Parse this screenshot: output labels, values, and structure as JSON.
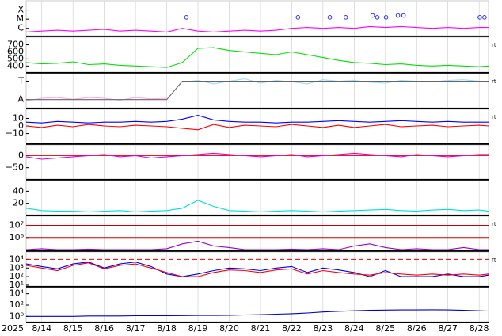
{
  "chart_data": [
    {
      "type": "line",
      "xlim": [
        13.5,
        28.3
      ],
      "ylim": [
        -6.8,
        -3.0
      ],
      "yticks": [
        {
          "value": -4,
          "label": "X"
        },
        {
          "value": -5,
          "label": "M"
        },
        {
          "value": -6,
          "label": "C"
        }
      ],
      "x": [
        13.5,
        14,
        14.5,
        15,
        15.5,
        16,
        16.5,
        17,
        17.5,
        18,
        18.5,
        19,
        19.5,
        20,
        20.5,
        21,
        21.5,
        22,
        22.5,
        23,
        23.5,
        24,
        24.5,
        25,
        25.5,
        26,
        26.5,
        27,
        27.5,
        28,
        28.3
      ],
      "series": [
        {
          "color": "#ff00ff",
          "values": [
            -6.4,
            -6.3,
            -6.2,
            -6.3,
            -6.2,
            -6.1,
            -6.3,
            -6.2,
            -6.3,
            -6.4,
            -6.0,
            -6.3,
            -6.4,
            -6.3,
            -6.2,
            -6.3,
            -6.2,
            -6.0,
            -5.9,
            -6.0,
            -5.9,
            -6.0,
            -5.8,
            -5.9,
            -5.8,
            -5.9,
            -6.0,
            -5.9,
            -6.0,
            -5.9,
            -5.9
          ]
        }
      ],
      "markers": {
        "color": "#3333ff",
        "x": [
          18.63,
          22.2,
          23.22,
          23.73,
          24.59,
          24.74,
          25.02,
          25.4,
          25.58,
          28.02,
          28.17
        ],
        "values": [
          -4.8,
          -4.8,
          -4.8,
          -4.8,
          -4.6,
          -4.8,
          -4.8,
          -4.6,
          -4.6,
          -4.8,
          -4.8
        ]
      }
    },
    {
      "type": "line",
      "xlim": [
        13.5,
        28.3
      ],
      "ylim": [
        314,
        807
      ],
      "yticks": [
        400,
        500,
        600,
        700
      ],
      "annotation": "rt",
      "x": [
        13.5,
        14,
        14.5,
        15,
        15.5,
        16,
        16.5,
        17,
        17.5,
        18,
        18.5,
        19,
        19.5,
        20,
        20.5,
        21,
        21.5,
        22,
        22.5,
        23,
        23.5,
        24,
        24.5,
        25,
        25.5,
        26,
        26.5,
        27,
        27.5,
        28,
        28.3
      ],
      "series": [
        {
          "color": "#00e000",
          "values": [
            450,
            430,
            440,
            460,
            420,
            430,
            410,
            400,
            390,
            380,
            450,
            650,
            660,
            620,
            600,
            580,
            560,
            600,
            560,
            520,
            480,
            450,
            440,
            420,
            430,
            410,
            400,
            410,
            400,
            390,
            400
          ]
        }
      ]
    },
    {
      "type": "line",
      "xlim": [
        13.5,
        28.3
      ],
      "ylim": [
        0,
        1
      ],
      "yticks": [
        {
          "value": 0.78,
          "label": "T"
        },
        {
          "value": 0.24,
          "label": "A"
        }
      ],
      "annotation": "rt",
      "x": [
        13.5,
        14,
        14.5,
        15,
        15.5,
        16,
        16.5,
        17,
        17.5,
        18,
        18.5,
        19,
        19.5,
        20,
        20.5,
        21,
        21.5,
        22,
        22.5,
        23,
        23.5,
        24,
        24.5,
        25,
        25.5,
        26,
        26.5,
        27,
        27.5,
        28,
        28.3
      ],
      "series": [
        {
          "color": "#ffaaee",
          "values": [
            0.2,
            0.28,
            0.3,
            0.25,
            0.3,
            0.28,
            0.22,
            0.3,
            0.26,
            0.28,
            null,
            null,
            null,
            null,
            null,
            null,
            null,
            null,
            null,
            null,
            null,
            null,
            null,
            null,
            null,
            null,
            null,
            null,
            null,
            null,
            null
          ]
        },
        {
          "color": "#99ddff",
          "values": [
            null,
            null,
            null,
            null,
            null,
            null,
            null,
            null,
            null,
            null,
            0.75,
            0.8,
            0.7,
            0.78,
            0.85,
            0.72,
            0.8,
            0.76,
            0.7,
            0.82,
            0.78,
            0.8,
            0.75,
            0.72,
            0.8,
            0.78,
            0.76,
            0.8,
            0.82,
            0.78,
            0.75
          ]
        },
        {
          "color": "#666666",
          "values": [
            0.24,
            0.24,
            0.24,
            0.24,
            0.24,
            0.24,
            0.24,
            0.24,
            0.24,
            0.24,
            0.78,
            0.78,
            0.78,
            0.78,
            0.78,
            0.78,
            0.78,
            0.78,
            0.78,
            0.78,
            0.78,
            0.78,
            0.78,
            0.78,
            0.78,
            0.78,
            0.78,
            0.78,
            0.78,
            0.78,
            0.78
          ]
        }
      ]
    },
    {
      "type": "line",
      "xlim": [
        13.5,
        28.3
      ],
      "ylim": [
        -23,
        22
      ],
      "yticks": [
        10,
        0,
        {
          "value": -10,
          "label": "−10"
        }
      ],
      "annotation": "rt",
      "x": [
        13.5,
        14,
        14.5,
        15,
        15.5,
        16,
        16.5,
        17,
        17.5,
        18,
        18.5,
        19,
        19.5,
        20,
        20.5,
        21,
        21.5,
        22,
        22.5,
        23,
        23.5,
        24,
        24.5,
        25,
        25.5,
        26,
        26.5,
        27,
        27.5,
        28,
        28.3
      ],
      "series": [
        {
          "color": "#0000ff",
          "values": [
            5,
            4,
            6,
            5,
            4,
            5,
            5,
            6,
            5,
            6,
            9,
            14,
            8,
            6,
            5,
            5,
            4,
            5,
            5,
            6,
            7,
            6,
            5,
            6,
            7,
            6,
            5,
            6,
            5,
            5,
            5
          ]
        },
        {
          "color": "#ff0000",
          "values": [
            0,
            -2,
            1,
            -1,
            2,
            0,
            -1,
            1,
            0,
            -1,
            -3,
            -5,
            2,
            -2,
            1,
            0,
            -1,
            2,
            0,
            -2,
            1,
            -2,
            0,
            2,
            -1,
            0,
            1,
            -1,
            0,
            1,
            0
          ]
        }
      ]
    },
    {
      "type": "line",
      "xlim": [
        13.5,
        28.3
      ],
      "ylim": [
        -97,
        44
      ],
      "yticks": [
        0,
        {
          "value": -50,
          "label": "−50"
        }
      ],
      "hlines": [
        {
          "value": 0,
          "color": "#dd0000"
        }
      ],
      "x": [
        13.5,
        14,
        14.5,
        15,
        15.5,
        16,
        16.5,
        17,
        17.5,
        18,
        18.5,
        19,
        19.5,
        20,
        20.5,
        21,
        21.5,
        22,
        22.5,
        23,
        23.5,
        24,
        24.5,
        25,
        25.5,
        26,
        26.5,
        27,
        27.5,
        28,
        28.3
      ],
      "series": [
        {
          "color": "#dd00dd",
          "values": [
            -5,
            -15,
            -10,
            -5,
            0,
            5,
            -5,
            0,
            -10,
            -5,
            0,
            5,
            10,
            5,
            0,
            -5,
            0,
            5,
            -5,
            0,
            5,
            10,
            5,
            0,
            -5,
            5,
            0,
            -5,
            0,
            5,
            5
          ]
        }
      ]
    },
    {
      "type": "line",
      "xlim": [
        13.5,
        28.3
      ],
      "ylim": [
        1.25,
        57.5
      ],
      "yticks": [
        40,
        20
      ],
      "x": [
        13.5,
        14,
        14.5,
        15,
        15.5,
        16,
        16.5,
        17,
        17.5,
        18,
        18.5,
        19,
        19.5,
        20,
        20.5,
        21,
        21.5,
        22,
        22.5,
        23,
        23.5,
        24,
        24.5,
        25,
        25.5,
        26,
        26.5,
        27,
        27.5,
        28,
        28.3
      ],
      "series": [
        {
          "color": "#00dddd",
          "values": [
            12,
            8,
            7,
            7,
            6,
            7,
            8,
            6,
            7,
            8,
            12,
            25,
            15,
            8,
            7,
            6,
            7,
            8,
            7,
            6,
            7,
            8,
            9,
            10,
            8,
            7,
            9,
            10,
            8,
            9,
            7
          ]
        }
      ]
    },
    {
      "type": "line",
      "xlim": [
        13.5,
        28.3
      ],
      "log": true,
      "ylim": [
        87000,
        56000000
      ],
      "yticks": [
        {
          "value": 10000000,
          "label": "10⁷"
        },
        {
          "value": 1000000,
          "label": "10⁶"
        }
      ],
      "annotation": "rt",
      "hlines": [
        {
          "value": 10000000,
          "color": "#cc0000"
        },
        {
          "value": 1000000,
          "color": "#cc0000"
        }
      ],
      "x": [
        13.5,
        14,
        14.5,
        15,
        15.5,
        16,
        16.5,
        17,
        17.5,
        18,
        18.5,
        19,
        19.5,
        20,
        20.5,
        21,
        21.5,
        22,
        22.5,
        23,
        23.5,
        24,
        24.5,
        25,
        25.5,
        26,
        26.5,
        27,
        27.5,
        28,
        28.3
      ],
      "series": [
        {
          "color": "#9900cc",
          "values": [
            100000,
            120000,
            100000,
            100000,
            110000,
            100000,
            100000,
            100000,
            100000,
            120000,
            300000,
            500000,
            200000,
            150000,
            100000,
            100000,
            100000,
            110000,
            100000,
            120000,
            100000,
            200000,
            300000,
            150000,
            100000,
            120000,
            100000,
            100000,
            150000,
            100000,
            100000
          ]
        }
      ]
    },
    {
      "type": "line",
      "xlim": [
        13.5,
        28.3
      ],
      "log": true,
      "ylim": [
        8,
        74000
      ],
      "yticks": [
        {
          "value": 10000,
          "label": "10⁴"
        },
        {
          "value": 1000,
          "label": "10³"
        },
        {
          "value": 100,
          "label": "10²"
        },
        {
          "value": 10,
          "label": "10¹"
        }
      ],
      "annotation": "rt",
      "hlines": [
        {
          "value": 10000,
          "color": "#ee0000",
          "dashed": true
        }
      ],
      "x": [
        13.5,
        14,
        14.5,
        15,
        15.5,
        16,
        16.5,
        17,
        17.5,
        18,
        18.5,
        19,
        19.5,
        20,
        20.5,
        21,
        21.5,
        22,
        22.5,
        23,
        23.5,
        24,
        24.5,
        25,
        25.5,
        26,
        26.5,
        27,
        27.5,
        28,
        28.3
      ],
      "series": [
        {
          "color": "#0000ff",
          "values": [
            3000,
            1500,
            800,
            3000,
            5000,
            1000,
            3000,
            5000,
            1500,
            200,
            100,
            200,
            500,
            1000,
            800,
            500,
            1000,
            1500,
            300,
            1000,
            600,
            300,
            100,
            500,
            100,
            100,
            100,
            200,
            100,
            100,
            150
          ]
        },
        {
          "color": "#ff0000",
          "values": [
            2000,
            1000,
            500,
            2000,
            4000,
            800,
            2000,
            3000,
            1000,
            300,
            100,
            100,
            300,
            600,
            500,
            300,
            600,
            800,
            200,
            500,
            300,
            200,
            150,
            300,
            200,
            150,
            200,
            150,
            200,
            150,
            200
          ]
        }
      ]
    },
    {
      "type": "line",
      "xlim": [
        13.5,
        28.3
      ],
      "log": true,
      "ylim": [
        0.117,
        117000
      ],
      "yticks": [
        {
          "value": 10000,
          "label": "10⁴"
        },
        {
          "value": 100,
          "label": "10²"
        },
        {
          "value": 1,
          "label": "10⁰"
        }
      ],
      "year": "2025",
      "grid": true,
      "xticks": [
        {
          "value": 14,
          "label": "8/14"
        },
        {
          "value": 15,
          "label": "8/15"
        },
        {
          "value": 16,
          "label": "8/16"
        },
        {
          "value": 17,
          "label": "8/17"
        },
        {
          "value": 18,
          "label": "8/18"
        },
        {
          "value": 19,
          "label": "8/19"
        },
        {
          "value": 20,
          "label": "8/20"
        },
        {
          "value": 21,
          "label": "8/21"
        },
        {
          "value": 22,
          "label": "8/22"
        },
        {
          "value": 23,
          "label": "8/23"
        },
        {
          "value": 24,
          "label": "8/24"
        },
        {
          "value": 25,
          "label": "8/25"
        },
        {
          "value": 26,
          "label": "8/26"
        },
        {
          "value": 27,
          "label": "8/27"
        },
        {
          "value": 28,
          "label": "8/28"
        }
      ],
      "x": [
        13.5,
        14,
        14.5,
        15,
        15.5,
        16,
        16.5,
        17,
        17.5,
        18,
        18.5,
        19,
        19.5,
        20,
        20.5,
        21,
        21.5,
        22,
        22.5,
        23,
        23.5,
        24,
        24.5,
        25,
        25.5,
        26,
        26.5,
        27,
        27.5,
        28,
        28.3
      ],
      "series": [
        {
          "color": "#0000cc",
          "values": [
            1,
            1,
            1,
            1,
            1.2,
            1.2,
            1.2,
            1.3,
            1.3,
            1.3,
            1.4,
            1.5,
            1.5,
            1.6,
            1.8,
            2,
            2.5,
            3,
            4,
            6,
            8,
            10,
            12,
            13,
            14,
            14,
            15,
            14,
            12,
            10,
            9
          ]
        }
      ]
    }
  ]
}
